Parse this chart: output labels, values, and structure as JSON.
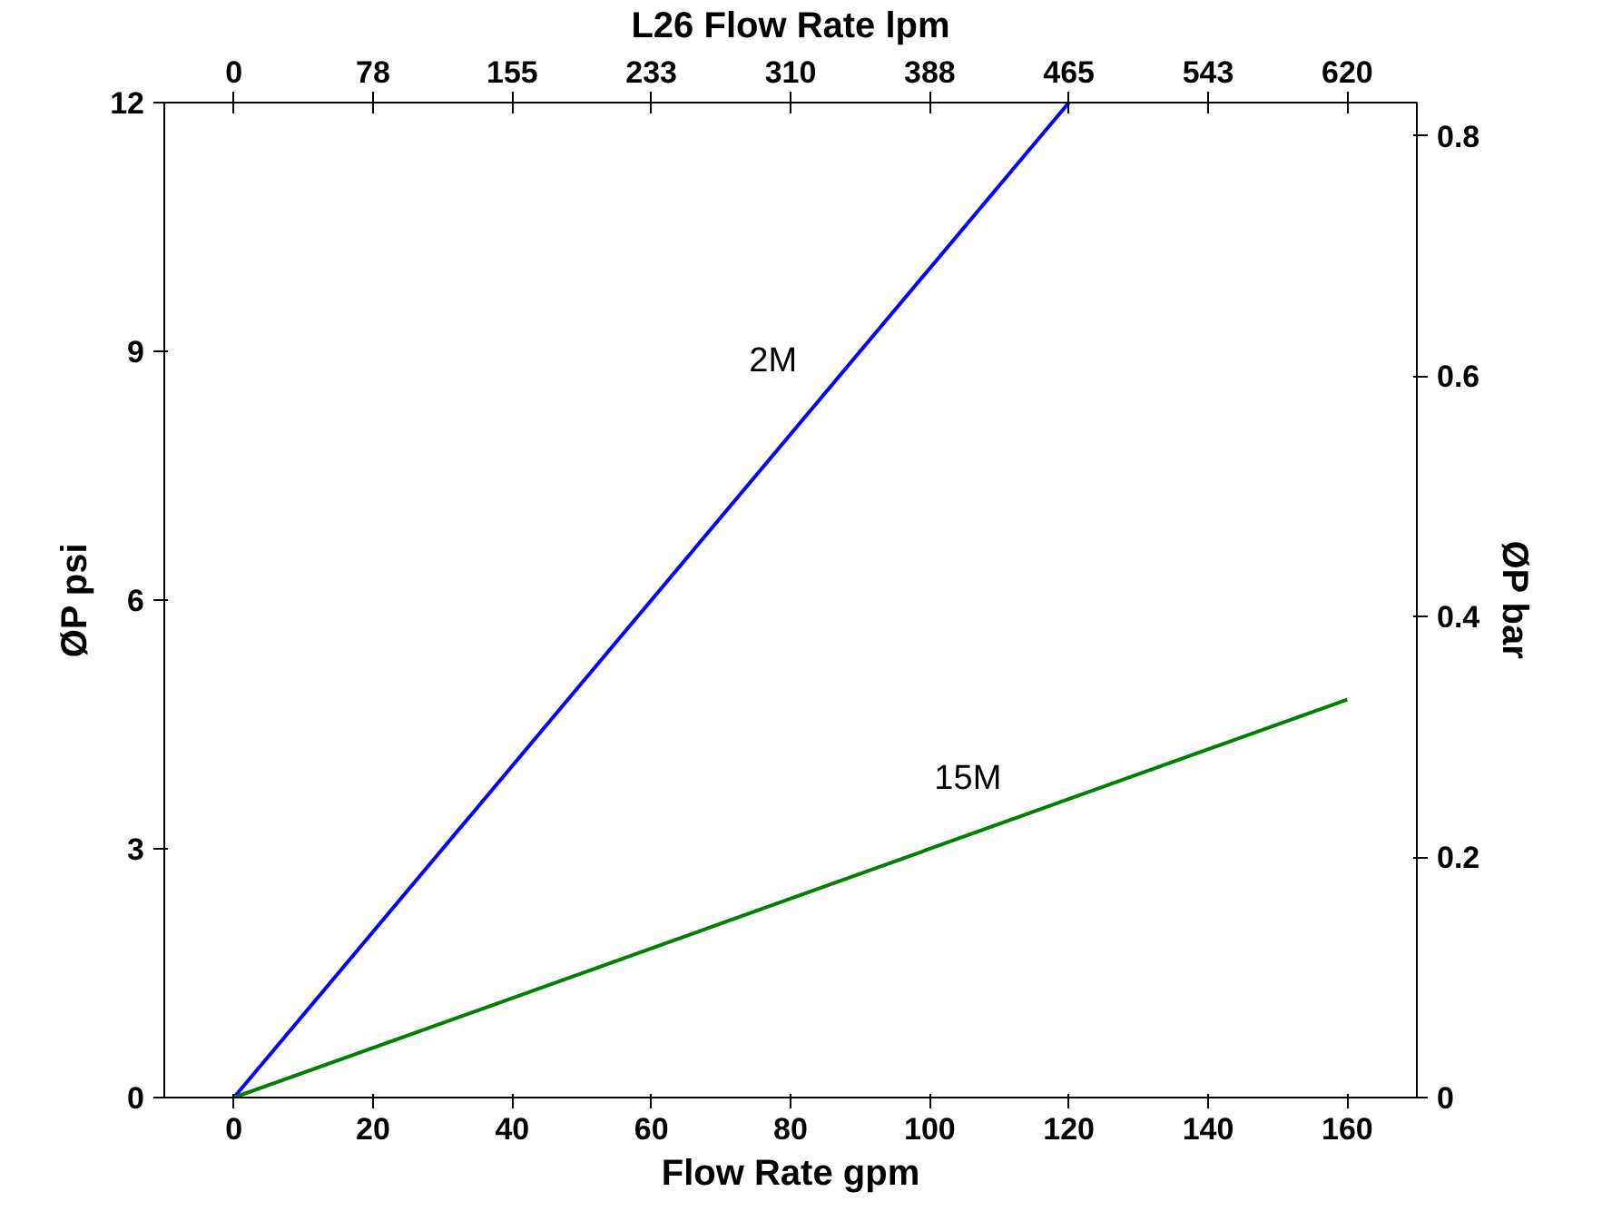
{
  "chart_data": {
    "type": "line",
    "xlabel": "Flow Rate gpm",
    "ylabel": "ØP psi",
    "y2label": "ØP bar",
    "x2label": "L26 Flow Rate lpm",
    "xlim": [
      -10,
      170
    ],
    "xticks": [
      0,
      20,
      40,
      60,
      80,
      100,
      120,
      140,
      160
    ],
    "x2lim": [
      -38.75,
      658.75
    ],
    "x2ticks": [
      0,
      {
        "value": 77.5,
        "label": "78"
      },
      155,
      {
        "value": 232.5,
        "label": "233"
      },
      310,
      {
        "value": 387.5,
        "label": "388"
      },
      465,
      {
        "value": 542.5,
        "label": "543"
      },
      620
    ],
    "ylim": [
      0,
      12
    ],
    "yticks": [
      0,
      3,
      6,
      9,
      12
    ],
    "y2lim": [
      0,
      0.8276
    ],
    "y2ticks": [
      0,
      0.2,
      0.4,
      0.6,
      0.8
    ],
    "grid": false,
    "marker": "none",
    "line_style": "solid",
    "series": [
      {
        "name": "2M",
        "color": "#0000ff",
        "x": [
          0,
          120
        ],
        "values": [
          0,
          12
        ]
      },
      {
        "name": "15M",
        "color": "#008000",
        "x": [
          0,
          160
        ],
        "values": [
          0,
          4.8
        ]
      }
    ]
  }
}
